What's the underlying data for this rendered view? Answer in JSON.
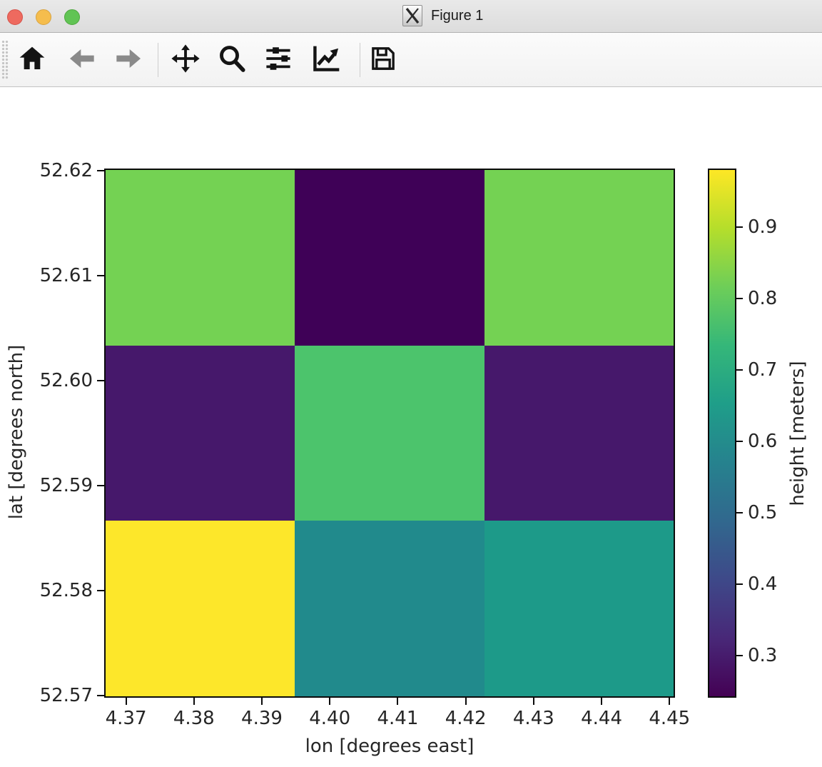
{
  "window": {
    "title": "Figure 1",
    "controls": {
      "close": "close",
      "minimize": "minimize",
      "zoom": "zoom"
    },
    "icon": "x11-app-icon"
  },
  "toolbar": {
    "buttons": [
      {
        "name": "home",
        "icon": "home-icon"
      },
      {
        "name": "back",
        "icon": "back-arrow-icon"
      },
      {
        "name": "forward",
        "icon": "forward-arrow-icon"
      },
      {
        "name": "pan",
        "icon": "pan-move-icon"
      },
      {
        "name": "zoom",
        "icon": "magnifier-icon"
      },
      {
        "name": "configure-subplots",
        "icon": "sliders-icon"
      },
      {
        "name": "customize",
        "icon": "line-chart-icon"
      },
      {
        "name": "save",
        "icon": "floppy-disk-icon"
      }
    ]
  },
  "chart_data": {
    "type": "heatmap",
    "colormap": "viridis",
    "xlabel": "lon [degrees east]",
    "ylabel": "lat [degrees north]",
    "colorbar_label": "height [meters]",
    "x_ticks": [
      "4.37",
      "4.38",
      "4.39",
      "4.40",
      "4.41",
      "4.42",
      "4.43",
      "4.44",
      "4.45"
    ],
    "y_ticks": [
      "52.62",
      "52.61",
      "52.60",
      "52.59",
      "52.58",
      "52.57"
    ],
    "colorbar_ticks": [
      "0.9",
      "0.8",
      "0.7",
      "0.6",
      "0.5",
      "0.4",
      "0.3"
    ],
    "xlim": [
      4.367,
      4.4506
    ],
    "ylim": [
      52.5699,
      52.6201
    ],
    "clim": [
      0.243,
      0.98
    ],
    "x_edges": [
      4.367,
      4.3949,
      4.4227,
      4.4506
    ],
    "y_edges": [
      52.5699,
      52.5866,
      52.6034,
      52.6201
    ],
    "values_rows_top_to_bottom": [
      [
        0.76,
        0.24,
        0.76
      ],
      [
        0.29,
        0.71,
        0.29
      ],
      [
        0.98,
        0.56,
        0.6
      ]
    ],
    "cell_colors": [
      [
        "#74d253",
        "#3f0157",
        "#74d253"
      ],
      [
        "#46186b",
        "#4cc46c",
        "#46186b"
      ],
      [
        "#fde72a",
        "#218a8c",
        "#1d9a89"
      ]
    ],
    "viridis_stops": [
      "#440154",
      "#482878",
      "#3e4989",
      "#31688e",
      "#26828e",
      "#1f9e89",
      "#35b779",
      "#6ece58",
      "#b5de2b",
      "#fde725"
    ],
    "grid": false,
    "legend": "colorbar-right"
  }
}
